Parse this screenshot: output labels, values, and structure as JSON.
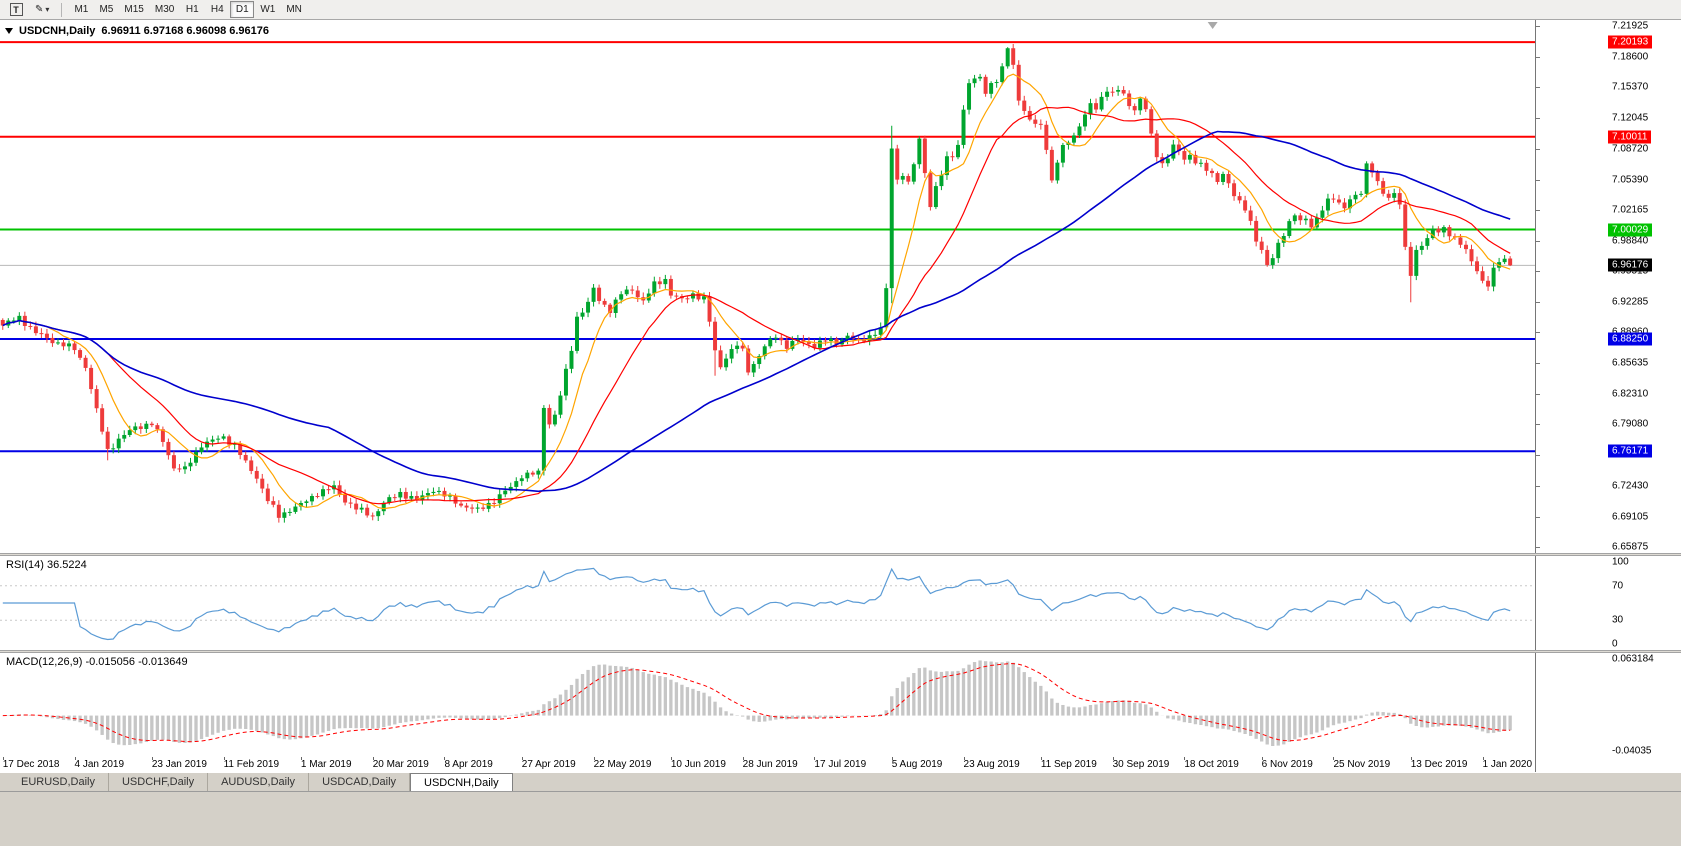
{
  "colors": {
    "up": "#00A52E",
    "down": "#EE3B3B",
    "ma_fast": "#FFA500",
    "ma_mid": "#FF0000",
    "ma_slow": "#0000CD",
    "rsi_line": "#5B9BD5",
    "rsi_level": "#C8C8C8",
    "macd_hist": "#C6C6C6",
    "macd_signal": "#FF0000",
    "hline_red": "#FF0000",
    "hline_green": "#00C200",
    "hline_blue": "#0000E6",
    "current_line": "#B8B8B8",
    "current_badge_bg": "#000000"
  },
  "toolbar": {
    "tool_text_glyph": "T",
    "tool_pencil_glyph": "✎",
    "caret_glyph": "▾",
    "timeframes": [
      "M1",
      "M5",
      "M15",
      "M30",
      "H1",
      "H4",
      "D1",
      "W1",
      "MN"
    ],
    "active_timeframe": "D1"
  },
  "chart": {
    "title_symbol": "USDCNH,Daily",
    "title_ohlc": "6.96911 6.97168 6.96098 6.96176"
  },
  "rsi": {
    "label": "RSI(14) 36.5224"
  },
  "macd": {
    "label": "MACD(12,26,9) -0.015056 -0.013649"
  },
  "tabs": [
    "EURUSD,Daily",
    "USDCHF,Daily",
    "AUDUSD,Daily",
    "USDCAD,Daily",
    "USDCNH,Daily"
  ],
  "active_tab": "USDCNH,Daily",
  "chart_data": [
    {
      "type": "candlestick",
      "symbol": "USDCNH",
      "timeframe": "Daily",
      "title": "USDCNH,Daily",
      "ohlc_current": {
        "open": 6.96911,
        "high": 6.97168,
        "low": 6.96098,
        "close": 6.96176
      },
      "ylim": [
        6.65875,
        7.21925
      ],
      "y_tick_labels": [
        "7.21925",
        "7.18600",
        "7.15370",
        "7.12045",
        "7.08720",
        "7.05390",
        "7.02165",
        "6.98840",
        "6.95515",
        "6.92285",
        "6.88960",
        "6.85635",
        "6.82310",
        "6.79080",
        "6.75755",
        "6.72430",
        "6.69105",
        "6.65875"
      ],
      "x_labels": [
        "17 Dec 2018",
        "4 Jan 2019",
        "23 Jan 2019",
        "11 Feb 2019",
        "1 Mar 2019",
        "20 Mar 2019",
        "8 Apr 2019",
        "27 Apr 2019",
        "22 May 2019",
        "10 Jun 2019",
        "28 Jun 2019",
        "17 Jul 2019",
        "5 Aug 2019",
        "23 Aug 2019",
        "11 Sep 2019",
        "30 Sep 2019",
        "18 Oct 2019",
        "6 Nov 2019",
        "25 Nov 2019",
        "13 Dec 2019",
        "1 Jan 2020"
      ],
      "x_label_indices": [
        0,
        13,
        27,
        40,
        54,
        67,
        80,
        94,
        107,
        121,
        134,
        147,
        161,
        174,
        188,
        201,
        214,
        228,
        241,
        255,
        268
      ],
      "bars_total": 274,
      "close_waypoints": [
        [
          0,
          6.897
        ],
        [
          3,
          6.906
        ],
        [
          6,
          6.889
        ],
        [
          10,
          6.878
        ],
        [
          13,
          6.872
        ],
        [
          15,
          6.853
        ],
        [
          17,
          6.805
        ],
        [
          19,
          6.763
        ],
        [
          21,
          6.774
        ],
        [
          24,
          6.788
        ],
        [
          27,
          6.791
        ],
        [
          29,
          6.773
        ],
        [
          31,
          6.744
        ],
        [
          33,
          6.742
        ],
        [
          36,
          6.769
        ],
        [
          40,
          6.777
        ],
        [
          42,
          6.768
        ],
        [
          44,
          6.749
        ],
        [
          46,
          6.734
        ],
        [
          48,
          6.709
        ],
        [
          50,
          6.692
        ],
        [
          52,
          6.699
        ],
        [
          54,
          6.704
        ],
        [
          57,
          6.717
        ],
        [
          60,
          6.723
        ],
        [
          62,
          6.709
        ],
        [
          64,
          6.7
        ],
        [
          67,
          6.692
        ],
        [
          69,
          6.706
        ],
        [
          72,
          6.717
        ],
        [
          75,
          6.709
        ],
        [
          78,
          6.721
        ],
        [
          80,
          6.714
        ],
        [
          83,
          6.704
        ],
        [
          86,
          6.698
        ],
        [
          89,
          6.709
        ],
        [
          92,
          6.723
        ],
        [
          94,
          6.736
        ],
        [
          97,
          6.738
        ],
        [
          98,
          6.81
        ],
        [
          99,
          6.792
        ],
        [
          100,
          6.801
        ],
        [
          101,
          6.822
        ],
        [
          103,
          6.872
        ],
        [
          104,
          6.906
        ],
        [
          106,
          6.921
        ],
        [
          107,
          6.936
        ],
        [
          108,
          6.924
        ],
        [
          110,
          6.914
        ],
        [
          112,
          6.931
        ],
        [
          114,
          6.936
        ],
        [
          116,
          6.923
        ],
        [
          118,
          6.941
        ],
        [
          120,
          6.947
        ],
        [
          121,
          6.931
        ],
        [
          123,
          6.924
        ],
        [
          125,
          6.931
        ],
        [
          127,
          6.926
        ],
        [
          128,
          6.901
        ],
        [
          129,
          6.869
        ],
        [
          130,
          6.853
        ],
        [
          131,
          6.864
        ],
        [
          133,
          6.876
        ],
        [
          134,
          6.869
        ],
        [
          135,
          6.849
        ],
        [
          136,
          6.856
        ],
        [
          138,
          6.874
        ],
        [
          140,
          6.886
        ],
        [
          142,
          6.875
        ],
        [
          144,
          6.881
        ],
        [
          147,
          6.876
        ],
        [
          149,
          6.881
        ],
        [
          151,
          6.879
        ],
        [
          153,
          6.886
        ],
        [
          155,
          6.879
        ],
        [
          157,
          6.886
        ],
        [
          159,
          6.893
        ],
        [
          160,
          6.936
        ],
        [
          161,
          7.088
        ],
        [
          162,
          7.054
        ],
        [
          163,
          7.061
        ],
        [
          164,
          7.049
        ],
        [
          165,
          7.071
        ],
        [
          166,
          7.096
        ],
        [
          167,
          7.063
        ],
        [
          168,
          7.026
        ],
        [
          169,
          7.046
        ],
        [
          170,
          7.059
        ],
        [
          171,
          7.076
        ],
        [
          172,
          7.081
        ],
        [
          173,
          7.091
        ],
        [
          174,
          7.131
        ],
        [
          175,
          7.156
        ],
        [
          176,
          7.161
        ],
        [
          177,
          7.166
        ],
        [
          178,
          7.146
        ],
        [
          179,
          7.161
        ],
        [
          180,
          7.156
        ],
        [
          181,
          7.176
        ],
        [
          182,
          7.194
        ],
        [
          183,
          7.179
        ],
        [
          184,
          7.141
        ],
        [
          185,
          7.126
        ],
        [
          186,
          7.119
        ],
        [
          187,
          7.111
        ],
        [
          188,
          7.116
        ],
        [
          189,
          7.086
        ],
        [
          190,
          7.054
        ],
        [
          191,
          7.071
        ],
        [
          192,
          7.089
        ],
        [
          193,
          7.096
        ],
        [
          194,
          7.101
        ],
        [
          195,
          7.114
        ],
        [
          196,
          7.121
        ],
        [
          197,
          7.136
        ],
        [
          198,
          7.129
        ],
        [
          199,
          7.144
        ],
        [
          200,
          7.151
        ],
        [
          201,
          7.146
        ],
        [
          202,
          7.151
        ],
        [
          203,
          7.144
        ],
        [
          204,
          7.136
        ],
        [
          205,
          7.129
        ],
        [
          206,
          7.141
        ],
        [
          207,
          7.129
        ],
        [
          208,
          7.101
        ],
        [
          209,
          7.081
        ],
        [
          210,
          7.071
        ],
        [
          211,
          7.079
        ],
        [
          212,
          7.089
        ],
        [
          213,
          7.084
        ],
        [
          214,
          7.076
        ],
        [
          215,
          7.081
        ],
        [
          216,
          7.074
        ],
        [
          217,
          7.069
        ],
        [
          218,
          7.064
        ],
        [
          219,
          7.059
        ],
        [
          220,
          7.054
        ],
        [
          221,
          7.061
        ],
        [
          222,
          7.049
        ],
        [
          223,
          7.036
        ],
        [
          224,
          7.029
        ],
        [
          225,
          7.024
        ],
        [
          226,
          7.009
        ],
        [
          227,
          6.989
        ],
        [
          228,
          6.976
        ],
        [
          229,
          6.961
        ],
        [
          230,
          6.971
        ],
        [
          231,
          6.986
        ],
        [
          232,
          6.996
        ],
        [
          233,
          7.006
        ],
        [
          234,
          7.016
        ],
        [
          235,
          7.009
        ],
        [
          236,
          7.014
        ],
        [
          237,
          7.004
        ],
        [
          238,
          7.011
        ],
        [
          239,
          7.021
        ],
        [
          240,
          7.031
        ],
        [
          241,
          7.036
        ],
        [
          242,
          7.029
        ],
        [
          243,
          7.024
        ],
        [
          244,
          7.031
        ],
        [
          245,
          7.036
        ],
        [
          246,
          7.041
        ],
        [
          247,
          7.071
        ],
        [
          248,
          7.064
        ],
        [
          249,
          7.049
        ],
        [
          250,
          7.039
        ],
        [
          251,
          7.034
        ],
        [
          252,
          7.041
        ],
        [
          253,
          7.029
        ],
        [
          254,
          6.979
        ],
        [
          255,
          6.951
        ],
        [
          256,
          6.976
        ],
        [
          257,
          6.986
        ],
        [
          258,
          6.991
        ],
        [
          259,
          7.001
        ],
        [
          260,
          6.996
        ],
        [
          261,
          7.001
        ],
        [
          262,
          6.996
        ],
        [
          263,
          6.991
        ],
        [
          264,
          6.986
        ],
        [
          265,
          6.976
        ],
        [
          266,
          6.966
        ],
        [
          267,
          6.956
        ],
        [
          268,
          6.946
        ],
        [
          269,
          6.941
        ],
        [
          270,
          6.956
        ],
        [
          271,
          6.966
        ],
        [
          272,
          6.967
        ],
        [
          273,
          6.9618
        ]
      ],
      "wick_overrides": [
        [
          19,
          null,
          6.752
        ],
        [
          50,
          null,
          6.685
        ],
        [
          129,
          null,
          6.843
        ],
        [
          161,
          7.112,
          6.921
        ],
        [
          182,
          7.1965,
          null
        ],
        [
          255,
          null,
          6.922
        ]
      ],
      "horizontal_lines": [
        {
          "price": "7.20193",
          "color_key": "hline_red"
        },
        {
          "price": "7.10011",
          "color_key": "hline_red"
        },
        {
          "price": "7.00029",
          "color_key": "hline_green"
        },
        {
          "price": "6.88250",
          "color_key": "hline_blue"
        },
        {
          "price": "6.76171",
          "color_key": "hline_blue"
        }
      ],
      "current_price": "6.96176",
      "moving_averages": [
        {
          "name": "ma-fast",
          "period": 8,
          "color_key": "ma_fast"
        },
        {
          "name": "ma-mid",
          "period": 20,
          "color_key": "ma_mid"
        },
        {
          "name": "ma-slow",
          "period": 60,
          "color_key": "ma_slow"
        }
      ],
      "shift_marker_x_frac": 0.79
    },
    {
      "type": "line",
      "indicator": "RSI",
      "label": "RSI(14) 36.5224",
      "period": 14,
      "current_value": 36.5224,
      "ylim": [
        0,
        100
      ],
      "levels": [
        70,
        30
      ],
      "y_tick_labels": [
        "100",
        "70",
        "30",
        "0"
      ]
    },
    {
      "type": "macd",
      "indicator": "MACD",
      "label": "MACD(12,26,9) -0.015056 -0.013649",
      "params": [
        12,
        26,
        9
      ],
      "current_values": [
        -0.015056,
        -0.013649
      ],
      "ylim": [
        -0.04035,
        0.063184
      ],
      "y_tick_labels": [
        "0.063184",
        "-0.04035"
      ]
    }
  ]
}
